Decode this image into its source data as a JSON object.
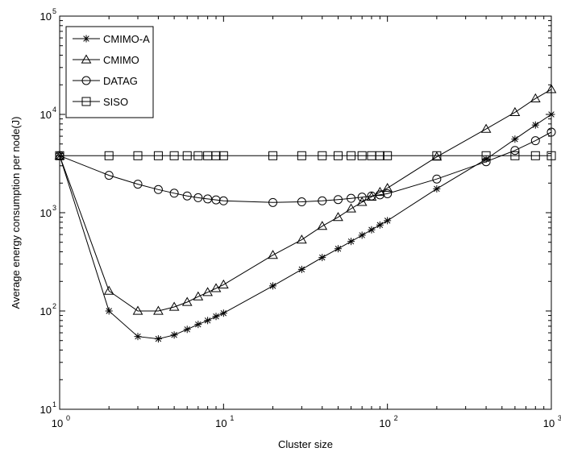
{
  "chart_data": {
    "type": "line",
    "xscale": "log",
    "yscale": "log",
    "xlim": [
      1,
      1000
    ],
    "ylim": [
      10,
      100000
    ],
    "xlabel": "Cluster size",
    "ylabel": "Average energy consumption per node(J)",
    "legend_position": "top-left",
    "grid": false,
    "x_ticks": [
      {
        "value": 1,
        "base": "10",
        "exp": "0"
      },
      {
        "value": 10,
        "base": "10",
        "exp": "1"
      },
      {
        "value": 100,
        "base": "10",
        "exp": "2"
      },
      {
        "value": 1000,
        "base": "10",
        "exp": "3"
      }
    ],
    "y_ticks": [
      {
        "value": 10,
        "base": "10",
        "exp": "1"
      },
      {
        "value": 100,
        "base": "10",
        "exp": "2"
      },
      {
        "value": 1000,
        "base": "10",
        "exp": "3"
      },
      {
        "value": 10000,
        "base": "10",
        "exp": "4"
      },
      {
        "value": 100000,
        "base": "10",
        "exp": "5"
      }
    ],
    "series": [
      {
        "name": "CMIMO-A",
        "marker": "star",
        "x": [
          1,
          2,
          3,
          4,
          5,
          6,
          7,
          8,
          9,
          10,
          20,
          30,
          40,
          50,
          60,
          70,
          80,
          90,
          100,
          200,
          400,
          600,
          800,
          1000
        ],
        "y": [
          3800,
          100,
          55,
          52,
          57,
          65,
          73,
          80,
          88,
          95,
          180,
          265,
          350,
          430,
          510,
          590,
          670,
          750,
          830,
          1750,
          3500,
          5600,
          7800,
          10000
        ]
      },
      {
        "name": "CMIMO",
        "marker": "triangle",
        "x": [
          1,
          2,
          3,
          4,
          5,
          6,
          7,
          8,
          9,
          10,
          20,
          30,
          40,
          50,
          60,
          70,
          80,
          90,
          100,
          200,
          400,
          600,
          800,
          1000
        ],
        "y": [
          3800,
          160,
          100,
          100,
          110,
          123,
          140,
          155,
          170,
          185,
          370,
          530,
          730,
          900,
          1100,
          1280,
          1450,
          1620,
          1780,
          3700,
          7100,
          10500,
          14500,
          18000
        ]
      },
      {
        "name": "DATAG",
        "marker": "circle",
        "x": [
          1,
          2,
          3,
          4,
          5,
          6,
          7,
          8,
          9,
          10,
          20,
          30,
          40,
          50,
          60,
          70,
          80,
          90,
          100,
          200,
          400,
          600,
          800,
          1000
        ],
        "y": [
          3800,
          2400,
          1950,
          1720,
          1580,
          1480,
          1420,
          1380,
          1350,
          1320,
          1270,
          1290,
          1320,
          1360,
          1400,
          1440,
          1480,
          1520,
          1560,
          2200,
          3300,
          4300,
          5400,
          6600
        ]
      },
      {
        "name": "SISO",
        "marker": "square",
        "x": [
          1,
          2,
          3,
          4,
          5,
          6,
          7,
          8,
          9,
          10,
          20,
          30,
          40,
          50,
          60,
          70,
          80,
          90,
          100,
          200,
          400,
          600,
          800,
          1000
        ],
        "y": [
          3800,
          3800,
          3800,
          3800,
          3800,
          3800,
          3800,
          3800,
          3800,
          3800,
          3800,
          3800,
          3800,
          3800,
          3800,
          3800,
          3800,
          3800,
          3800,
          3800,
          3800,
          3800,
          3800,
          3800
        ]
      }
    ]
  }
}
